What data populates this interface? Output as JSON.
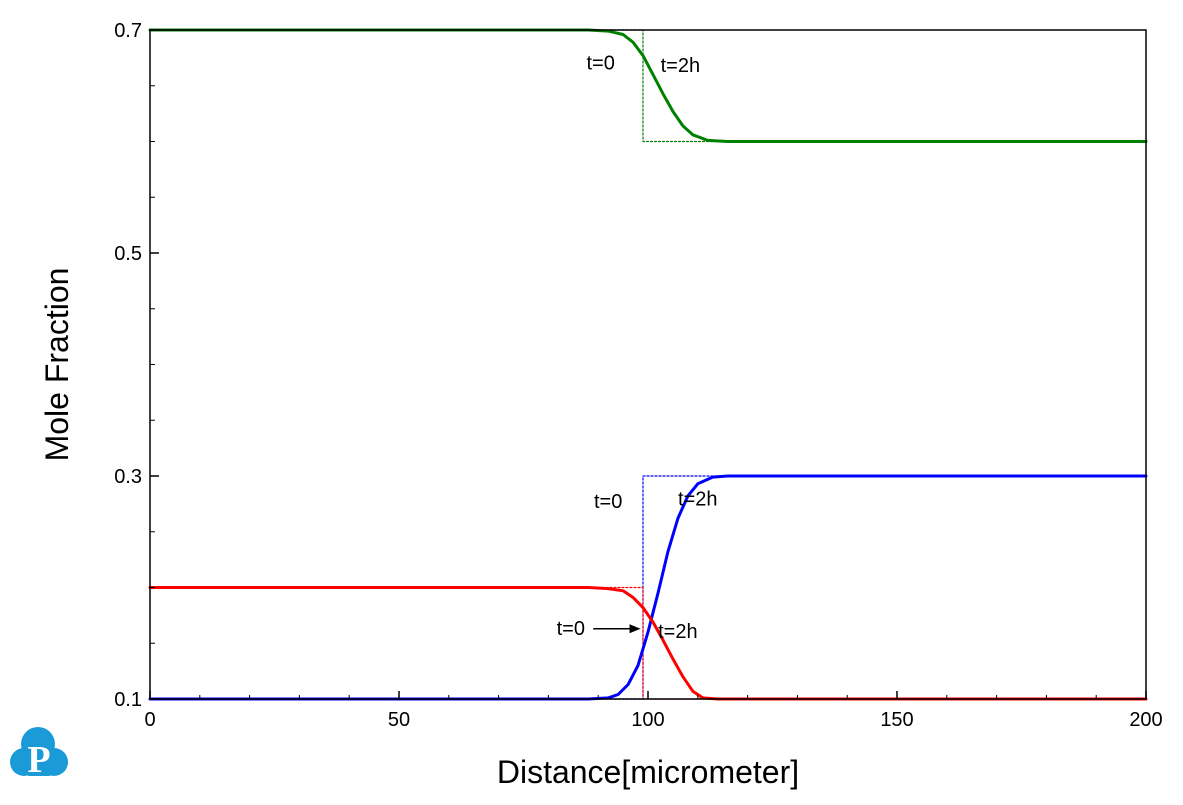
{
  "chart_data": {
    "type": "line",
    "title": "",
    "xlabel": "Distance[micrometer]",
    "ylabel": "Mole Fraction",
    "xlim": [
      0,
      200
    ],
    "ylim": [
      0.1,
      0.7
    ],
    "x_ticks": [
      0,
      50,
      100,
      150,
      200
    ],
    "x_tick_labels": [
      "0",
      "50",
      "100",
      "150",
      "200"
    ],
    "y_ticks": [
      0.1,
      0.3,
      0.5,
      0.7
    ],
    "y_tick_labels": [
      "0.1",
      "0.3",
      "0.5",
      "0.7"
    ],
    "grid": false,
    "legend": "none",
    "series": [
      {
        "color": "#008000",
        "style": "dotted",
        "x": [
          0,
          99,
          99,
          200
        ],
        "y": [
          0.7,
          0.7,
          0.6,
          0.6
        ]
      },
      {
        "color": "#008000",
        "style": "solid",
        "x": [
          0,
          88,
          92,
          95,
          97,
          99,
          101,
          103,
          105,
          107,
          109,
          112,
          116,
          120,
          200
        ],
        "y": [
          0.7,
          0.7,
          0.699,
          0.696,
          0.689,
          0.677,
          0.66,
          0.643,
          0.627,
          0.614,
          0.606,
          0.601,
          0.6,
          0.6,
          0.6
        ]
      },
      {
        "color": "#0000ff",
        "style": "dotted",
        "x": [
          0,
          99,
          99,
          200
        ],
        "y": [
          0.1,
          0.1,
          0.3,
          0.3
        ]
      },
      {
        "color": "#0000ff",
        "style": "solid",
        "x": [
          0,
          88,
          92,
          94,
          96,
          98,
          100,
          102,
          104,
          106,
          108,
          110,
          113,
          116,
          120,
          200
        ],
        "y": [
          0.1,
          0.1,
          0.101,
          0.104,
          0.113,
          0.13,
          0.16,
          0.195,
          0.232,
          0.262,
          0.282,
          0.293,
          0.299,
          0.3,
          0.3,
          0.3
        ]
      },
      {
        "color": "#ff0000",
        "style": "dotted",
        "x": [
          0,
          99,
          99,
          200
        ],
        "y": [
          0.2,
          0.2,
          0.1,
          0.1
        ]
      },
      {
        "color": "#ff0000",
        "style": "solid",
        "x": [
          0,
          88,
          92,
          95,
          97,
          99,
          101,
          103,
          105,
          107,
          109,
          111,
          114,
          117,
          200
        ],
        "y": [
          0.2,
          0.2,
          0.199,
          0.197,
          0.191,
          0.182,
          0.169,
          0.153,
          0.136,
          0.12,
          0.107,
          0.101,
          0.1,
          0.1,
          0.1
        ]
      }
    ],
    "annotations": [
      {
        "text": "t=0",
        "x": 90.5,
        "y": 0.6645
      },
      {
        "text": "t=2h",
        "x": 106.5,
        "y": 0.6625
      },
      {
        "text": "t=0",
        "x": 92,
        "y": 0.2715
      },
      {
        "text": "t=2h",
        "x": 110,
        "y": 0.2735
      },
      {
        "text": "t=0",
        "x": 84.5,
        "y": 0.1575
      },
      {
        "text": "t=2h",
        "x": 106,
        "y": 0.1545
      }
    ],
    "arrow": {
      "from": {
        "x": 89,
        "y": 0.163
      },
      "to": {
        "x": 98.5,
        "y": 0.163
      }
    }
  },
  "logo": {
    "letter": "P",
    "color": "#1a9bd7"
  }
}
